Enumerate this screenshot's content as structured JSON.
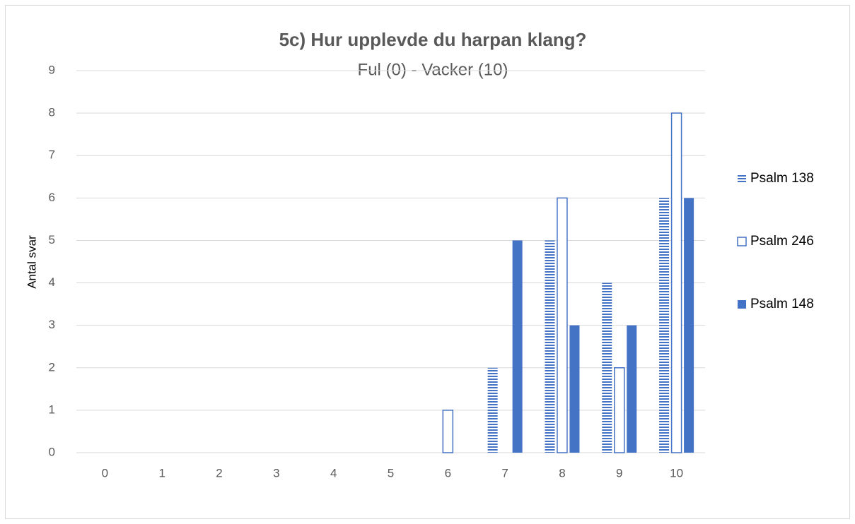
{
  "chart_data": {
    "type": "bar",
    "title": "5c) Hur upplevde du harpan klang?",
    "subtitle": "Ful (0) - Vacker (10)",
    "y_label": "Antal svar",
    "categories": [
      "0",
      "1",
      "2",
      "3",
      "4",
      "5",
      "6",
      "7",
      "8",
      "9",
      "10"
    ],
    "series": [
      {
        "name": "Psalm 138",
        "color": "#4472c4",
        "style": "striped",
        "values": [
          0,
          0,
          0,
          0,
          0,
          0,
          0,
          2,
          5,
          4,
          6
        ]
      },
      {
        "name": "Psalm 246",
        "color": "#4472c4",
        "style": "outline",
        "values": [
          0,
          0,
          0,
          0,
          0,
          0,
          1,
          0,
          6,
          2,
          8
        ]
      },
      {
        "name": "Psalm 148",
        "color": "#4472c4",
        "style": "solid",
        "values": [
          0,
          0,
          0,
          0,
          0,
          0,
          0,
          5,
          3,
          3,
          6
        ]
      }
    ],
    "ylim": [
      0,
      9
    ],
    "yticks": [
      0,
      1,
      2,
      3,
      4,
      5,
      6,
      7,
      8,
      9
    ],
    "grid": true,
    "legend": "right"
  }
}
